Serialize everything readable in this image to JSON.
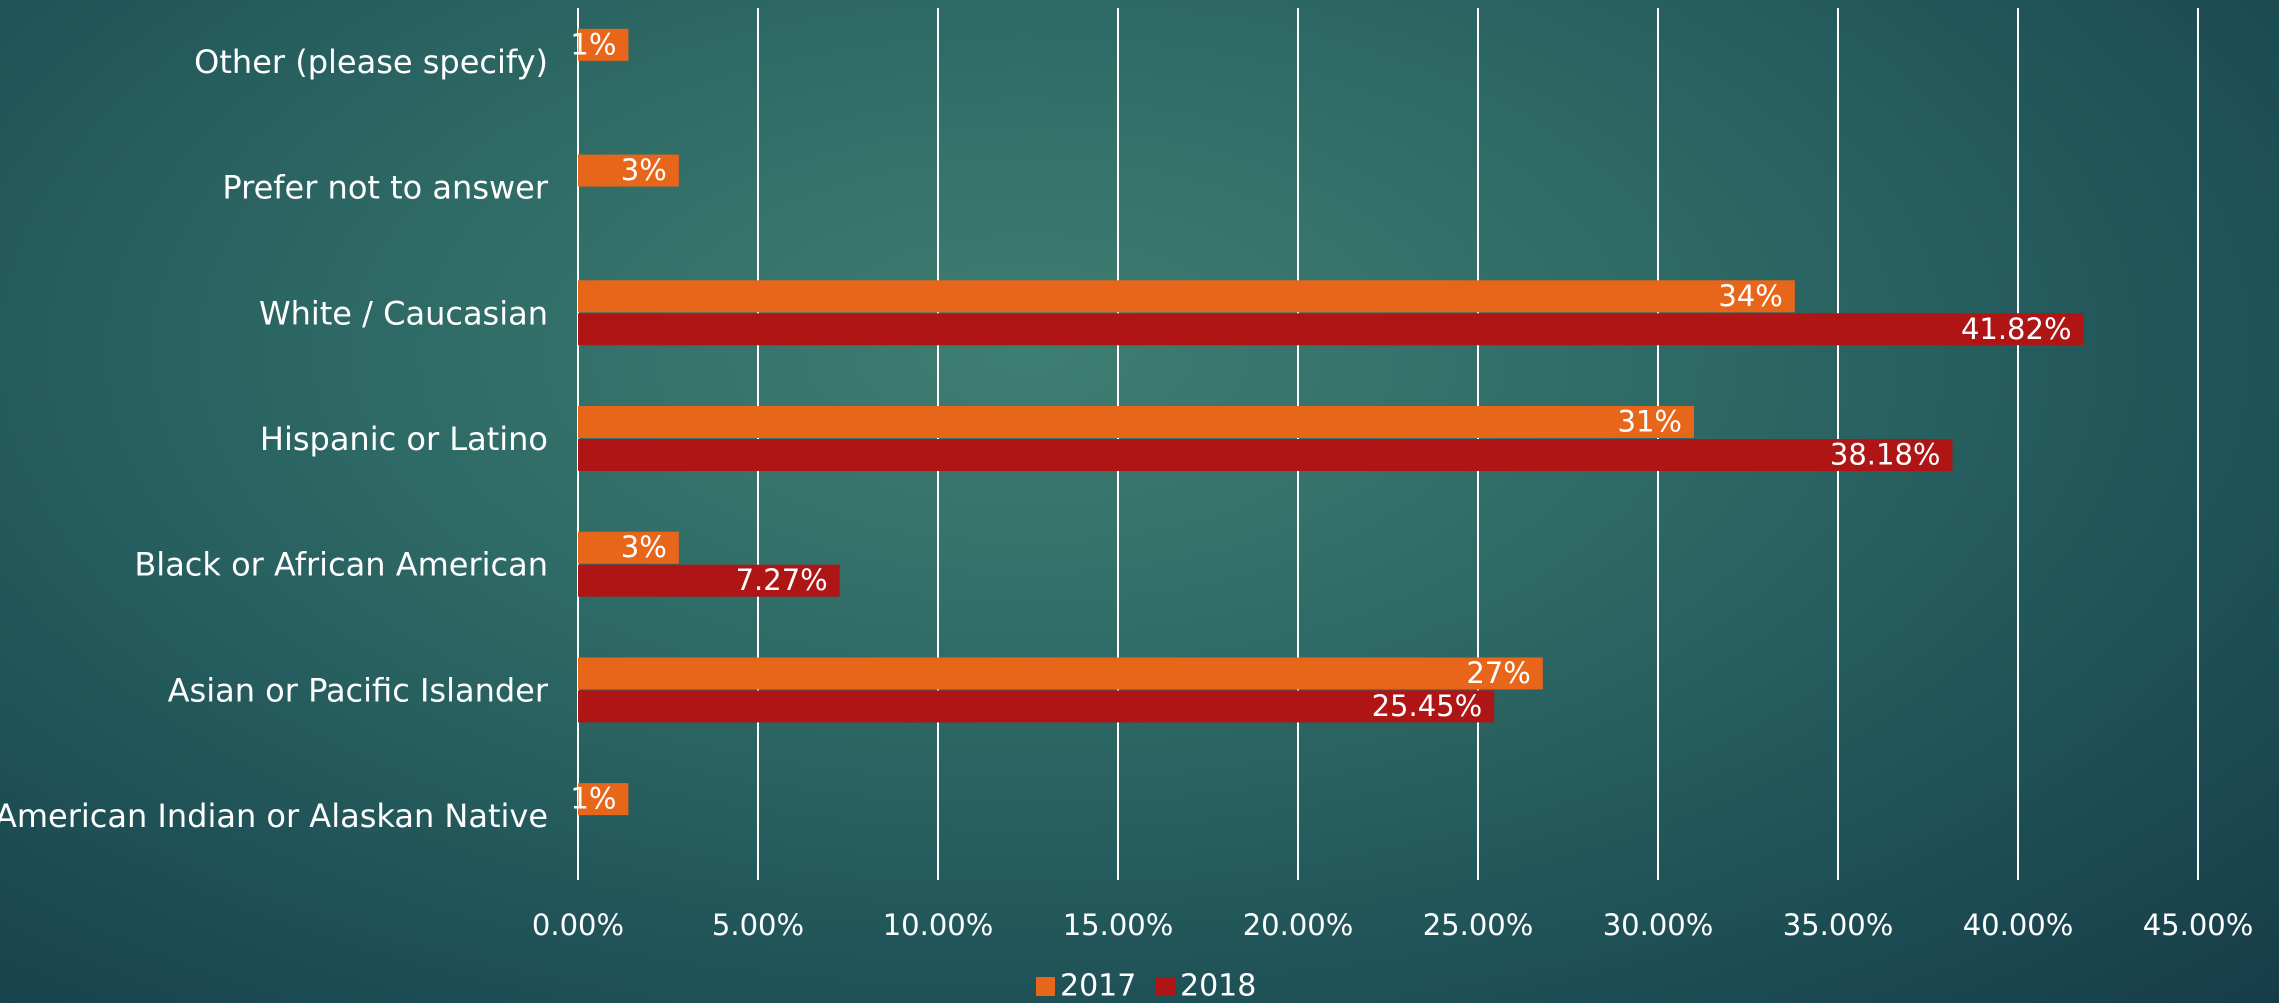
{
  "chart_data": {
    "type": "bar",
    "orientation": "horizontal",
    "categories": [
      "Other (please specify)",
      "Prefer not to answer",
      "White / Caucasian",
      "Hispanic or Latino",
      "Black or African American",
      "Asian or Pacific Islander",
      "American Indian or Alaskan Native"
    ],
    "series": [
      {
        "name": "2017",
        "color": "#e8661a",
        "values": [
          0.014,
          0.028,
          0.338,
          0.31,
          0.028,
          0.268,
          0.014
        ],
        "labels": [
          "1%",
          "3%",
          "34%",
          "31%",
          "3%",
          "27%",
          "1%"
        ]
      },
      {
        "name": "2018",
        "color": "#b01515",
        "values": [
          null,
          null,
          0.4182,
          0.3818,
          0.0727,
          0.2545,
          null
        ],
        "labels": [
          "",
          "",
          "41.82%",
          "38.18%",
          "7.27%",
          "25.45%",
          ""
        ]
      }
    ],
    "xlim": [
      0,
      0.45
    ],
    "xticks": [
      "0.00%",
      "5.00%",
      "10.00%",
      "15.00%",
      "20.00%",
      "25.00%",
      "30.00%",
      "35.00%",
      "40.00%",
      "45.00%"
    ],
    "grid": true,
    "legend_position": "bottom",
    "title": "",
    "xlabel": "",
    "ylabel": ""
  }
}
